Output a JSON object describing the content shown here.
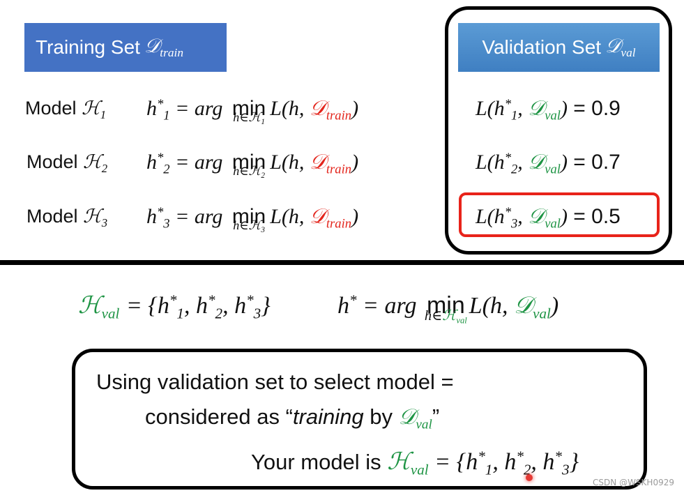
{
  "headers": {
    "train_prefix": "Training Set ",
    "train_symbol": "𝒟",
    "train_sub": "train",
    "val_prefix": "Validation Set ",
    "val_symbol": "𝒟",
    "val_sub": "val"
  },
  "models": [
    {
      "label": "Model ",
      "cal": "ℋ",
      "sub": "1",
      "h_sub": "1",
      "loss_value": "= 0.9"
    },
    {
      "label": "Model ",
      "cal": "ℋ",
      "sub": "2",
      "h_sub": "2",
      "loss_value": "= 0.7"
    },
    {
      "label": "Model ",
      "cal": "ℋ",
      "sub": "3",
      "h_sub": "3",
      "loss_value": "= 0.5"
    }
  ],
  "formula": {
    "arg": "= arg ",
    "min": "min",
    "loss_open": "L(h, ",
    "loss_close": ")",
    "train": "train",
    "val": "val",
    "D": "𝒟",
    "H": "ℋ"
  },
  "bottom": {
    "hval_def": "= {h",
    "hstar": "h",
    "hstar_eq": " = arg ",
    "close": "}"
  },
  "note": {
    "line1": "Using validation set to select model =",
    "line2_a": "considered as “",
    "line2_b": "training",
    "line2_c": " by ",
    "line2_end": "”",
    "line3": "Your model is "
  },
  "watermark": "CSDN @WSKH0929",
  "colors": {
    "train": "#e3241b",
    "val": "#1e9444",
    "header": "#4472c4",
    "best": "#e8231a"
  }
}
